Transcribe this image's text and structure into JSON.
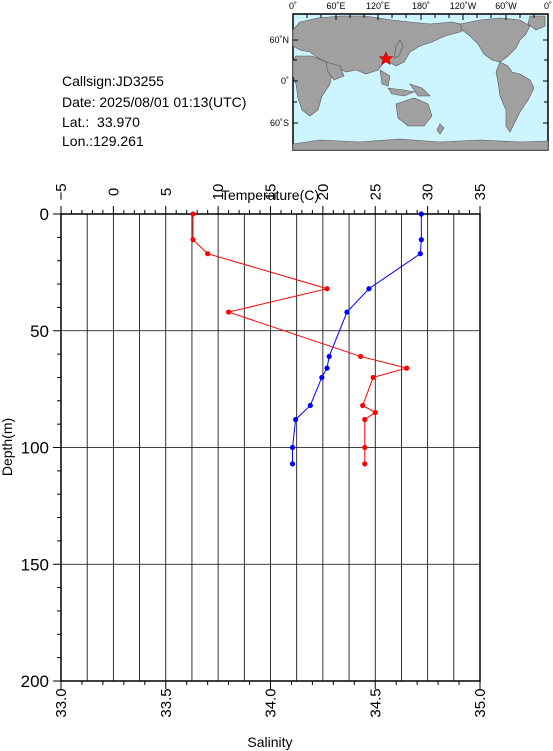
{
  "station": {
    "callsign_label": "Callsign:",
    "callsign": "JD3255",
    "date_label": "Date: ",
    "date": "2025/08/01 01:13(UTC)",
    "lat_label": "Lat.: ",
    "lat": "33.970",
    "lon_label": "Lon.: ",
    "lon": "129.261"
  },
  "map": {
    "top_labels": [
      "0˚",
      "60˚E",
      "120˚E",
      "180˚",
      "120˚W",
      "60˚W",
      "0˚"
    ],
    "left_labels": [
      "60˚N",
      "0˚",
      "60˚S"
    ],
    "ocean_color": "#cdf5ff",
    "land_color": "#a0a0a0",
    "marker_color": "#ff0000",
    "marker_icon": "star-icon"
  },
  "chart_data": {
    "type": "line",
    "top_axis_label": "Temperature(C)",
    "bottom_axis_label": "Salinity",
    "y_axis_label": "Depth(m)",
    "temperature_range": [
      -5,
      35
    ],
    "temperature_ticks": [
      "−5",
      "0",
      "5",
      "10",
      "15",
      "20",
      "25",
      "30",
      "35"
    ],
    "salinity_range": [
      33.0,
      35.0
    ],
    "salinity_ticks": [
      "33.0",
      "33.5",
      "34.0",
      "34.5",
      "35.0"
    ],
    "depth_range": [
      0,
      200
    ],
    "depth_ticks": [
      "0",
      "50",
      "100",
      "150",
      "200"
    ],
    "grid": true,
    "series": [
      {
        "color": "#0000ff",
        "axis": "temperature",
        "points": [
          {
            "value": 29.4,
            "depth": 0
          },
          {
            "value": 29.4,
            "depth": 11
          },
          {
            "value": 29.3,
            "depth": 17
          },
          {
            "value": 24.4,
            "depth": 32
          },
          {
            "value": 22.3,
            "depth": 42
          },
          {
            "value": 20.6,
            "depth": 61
          },
          {
            "value": 20.4,
            "depth": 66
          },
          {
            "value": 19.9,
            "depth": 70
          },
          {
            "value": 18.8,
            "depth": 82
          },
          {
            "value": 17.4,
            "depth": 88
          },
          {
            "value": 17.1,
            "depth": 100
          },
          {
            "value": 17.1,
            "depth": 107
          }
        ]
      },
      {
        "color": "#ff0000",
        "axis": "salinity",
        "points": [
          {
            "value": 33.63,
            "depth": 0
          },
          {
            "value": 33.63,
            "depth": 11
          },
          {
            "value": 33.7,
            "depth": 17
          },
          {
            "value": 34.27,
            "depth": 32
          },
          {
            "value": 33.8,
            "depth": 42
          },
          {
            "value": 34.43,
            "depth": 61
          },
          {
            "value": 34.65,
            "depth": 66
          },
          {
            "value": 34.49,
            "depth": 70
          },
          {
            "value": 34.44,
            "depth": 82
          },
          {
            "value": 34.5,
            "depth": 85
          },
          {
            "value": 34.45,
            "depth": 88
          },
          {
            "value": 34.45,
            "depth": 100
          },
          {
            "value": 34.45,
            "depth": 107
          }
        ]
      }
    ]
  }
}
